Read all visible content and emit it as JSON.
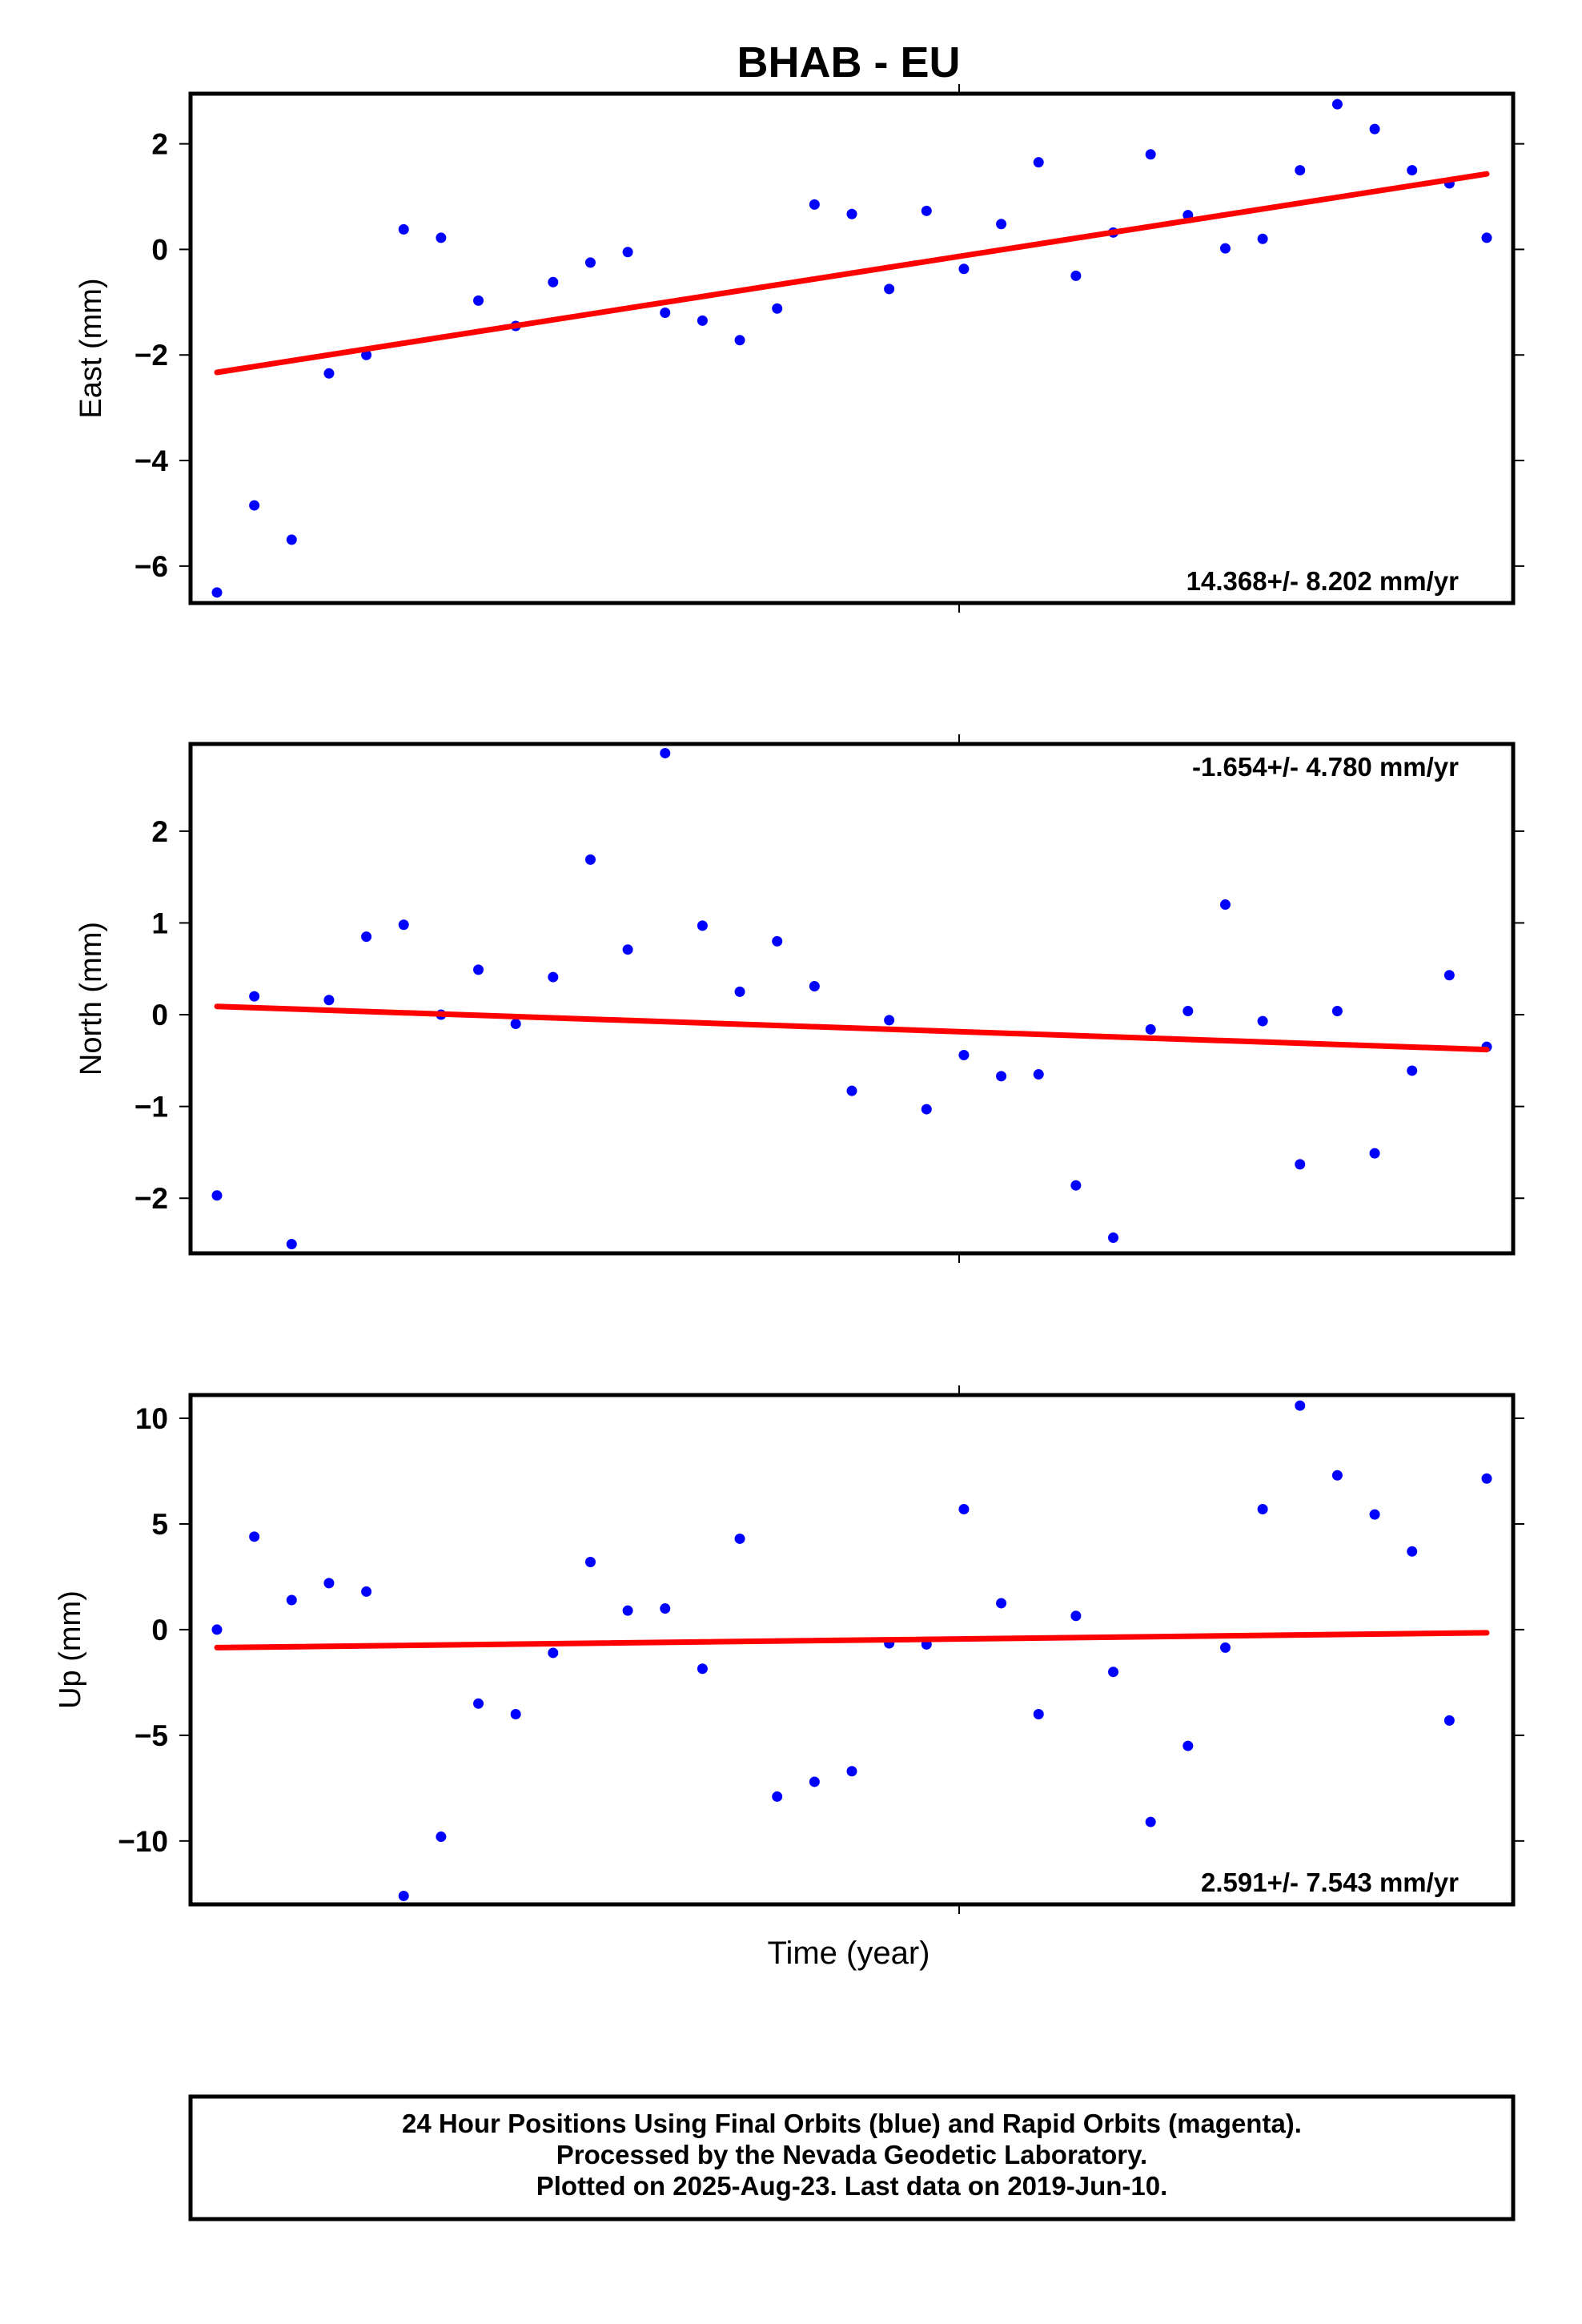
{
  "title": "BHAB - EU",
  "x_label": "Time (year)",
  "footer": {
    "line1": "24 Hour Positions Using Final Orbits (blue) and Rapid Orbits (magenta).",
    "line2": "Processed by the Nevada Geodetic Laboratory.",
    "line3": "Plotted on 2025-Aug-23. Last data on 2019-Jun-10."
  },
  "colors": {
    "points": "#0000ff",
    "trend": "#ff0000",
    "frame": "#000000"
  },
  "chart_data": [
    {
      "type": "scatter",
      "ylabel": "East (mm)",
      "rate_text": "14.368+/- 8.202 mm/yr",
      "rate_position": "bottom-right",
      "ylim": [
        -6.7,
        2.95
      ],
      "yticks": [
        2,
        0,
        -2,
        -4,
        -6
      ],
      "ytick_labels": [
        "2",
        "0",
        "−2",
        "−4",
        "−6"
      ],
      "y": [
        -6.5,
        -4.85,
        -5.5,
        -2.35,
        -2.0,
        0.38,
        0.22,
        -0.97,
        -1.45,
        -0.62,
        -0.25,
        -0.05,
        -1.2,
        -1.35,
        -1.72,
        -1.12,
        0.85,
        0.67,
        -0.75,
        0.73,
        -0.37,
        0.48,
        1.65,
        -0.5,
        0.32,
        1.8,
        0.65,
        0.02,
        0.2,
        1.5,
        2.75,
        2.28,
        1.5,
        1.25,
        0.22
      ],
      "trend": [
        -2.33,
        1.43
      ]
    },
    {
      "type": "scatter",
      "ylabel": "North (mm)",
      "rate_text": "-1.654+/- 4.780 mm/yr",
      "rate_position": "top-right",
      "ylim": [
        -2.6,
        2.95
      ],
      "yticks": [
        2,
        1,
        0,
        -1,
        -2
      ],
      "ytick_labels": [
        "2",
        "1",
        "0",
        "−1",
        "−2"
      ],
      "y": [
        -1.97,
        0.2,
        -2.5,
        0.16,
        0.85,
        0.98,
        0.0,
        0.49,
        -0.1,
        0.41,
        1.69,
        0.71,
        2.85,
        0.97,
        0.25,
        0.8,
        0.31,
        -0.83,
        -0.06,
        -1.03,
        -0.44,
        -0.67,
        -0.65,
        -1.86,
        -2.43,
        -0.16,
        0.04,
        1.2,
        -0.07,
        -1.63,
        0.04,
        -1.51,
        -0.61,
        0.43,
        -0.35
      ],
      "trend": [
        0.09,
        -0.38
      ]
    },
    {
      "type": "scatter",
      "ylabel": "Up (mm)",
      "rate_text": "2.591+/- 7.543 mm/yr",
      "rate_position": "bottom-right",
      "ylim": [
        -13.0,
        11.1
      ],
      "yticks": [
        10,
        5,
        0,
        -5,
        -10
      ],
      "ytick_labels": [
        "10",
        "5",
        "0",
        "−5",
        "−10"
      ],
      "y": [
        0.0,
        4.4,
        1.4,
        2.2,
        1.8,
        -12.6,
        -9.8,
        -3.5,
        -4.0,
        -1.1,
        3.2,
        0.9,
        1.0,
        -1.85,
        4.3,
        -7.9,
        -7.2,
        -6.7,
        -0.65,
        -0.7,
        5.7,
        1.25,
        -4.0,
        0.65,
        -2.0,
        -9.1,
        -5.5,
        -0.85,
        5.7,
        10.6,
        7.3,
        5.45,
        3.7,
        -4.3,
        7.15
      ],
      "trend": [
        -0.85,
        -0.15
      ]
    }
  ]
}
